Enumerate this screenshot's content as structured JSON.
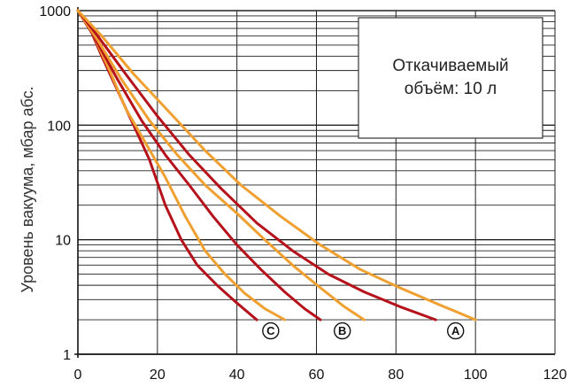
{
  "chart_data": {
    "type": "line",
    "title": "",
    "xlabel": "",
    "ylabel": "Уровень вакуума, мбар абс.",
    "x_scale": "linear",
    "y_scale": "log",
    "xlim": [
      0,
      120
    ],
    "ylim": [
      1,
      1000
    ],
    "x_ticks": [
      "0",
      "20",
      "40",
      "60",
      "80",
      "100",
      "120"
    ],
    "y_ticks": [
      "1",
      "10",
      "100",
      "1000"
    ],
    "grid": true,
    "annotation": {
      "lines": [
        "Откачиваемый",
        "объём: 10 л"
      ]
    },
    "group_labels": [
      "C",
      "B",
      "A"
    ],
    "colors": {
      "red": "#b5121b",
      "orange": "#f0a030"
    },
    "series": [
      {
        "group": "C",
        "color": "red",
        "x": [
          0,
          3,
          6,
          10,
          14,
          18,
          22,
          26,
          30,
          35,
          40,
          45
        ],
        "y": [
          1000,
          700,
          400,
          200,
          100,
          50,
          20,
          10,
          6,
          4,
          2.8,
          2
        ]
      },
      {
        "group": "C",
        "color": "orange",
        "x": [
          0,
          4,
          8,
          12,
          17,
          22,
          27,
          32,
          37,
          42,
          47,
          52
        ],
        "y": [
          1000,
          600,
          300,
          140,
          70,
          35,
          16,
          8,
          5,
          3.4,
          2.5,
          2
        ]
      },
      {
        "group": "B",
        "color": "red",
        "x": [
          0,
          4,
          10,
          16,
          22,
          28,
          34,
          40,
          46,
          52,
          57,
          61
        ],
        "y": [
          1000,
          600,
          250,
          110,
          55,
          30,
          16,
          9,
          5.5,
          3.5,
          2.5,
          2
        ]
      },
      {
        "group": "B",
        "color": "orange",
        "x": [
          0,
          5,
          11,
          18,
          25,
          32,
          40,
          47,
          54,
          61,
          67,
          72
        ],
        "y": [
          1000,
          550,
          250,
          110,
          55,
          30,
          17,
          10,
          6,
          3.8,
          2.6,
          2
        ]
      },
      {
        "group": "A",
        "color": "red",
        "x": [
          0,
          5,
          12,
          20,
          28,
          36,
          45,
          54,
          63,
          72,
          81,
          90
        ],
        "y": [
          1000,
          600,
          280,
          120,
          55,
          28,
          14,
          8,
          5,
          3.5,
          2.6,
          2
        ]
      },
      {
        "group": "A",
        "color": "orange",
        "x": [
          0,
          6,
          14,
          23,
          32,
          41,
          51,
          61,
          71,
          81,
          91,
          100
        ],
        "y": [
          1000,
          600,
          280,
          130,
          60,
          30,
          16,
          9,
          5.5,
          3.8,
          2.7,
          2
        ]
      }
    ]
  }
}
